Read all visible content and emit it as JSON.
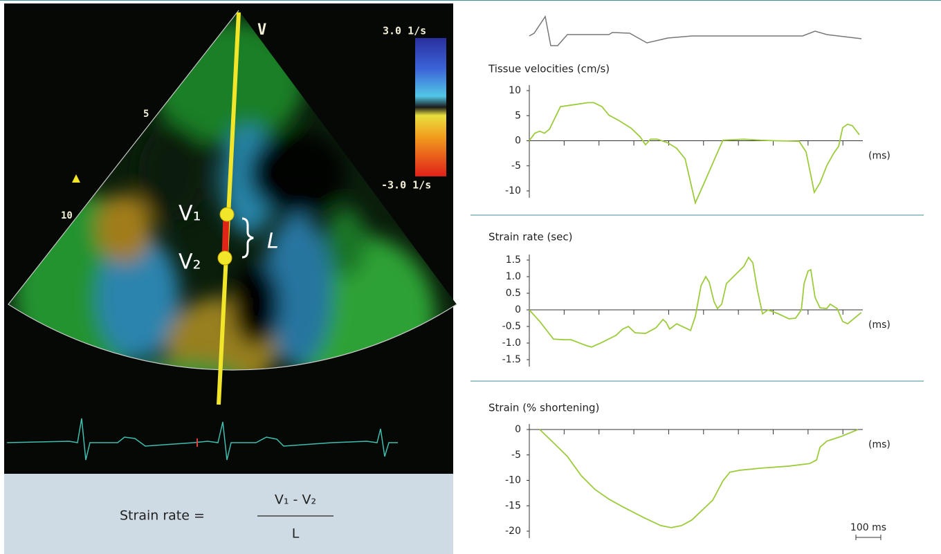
{
  "echo": {
    "scale_top": "3.0 1/s",
    "scale_bottom": "-3.0 1/s",
    "beam": "V",
    "depth_5": "5",
    "depth_10": "10",
    "point_1": "V₁",
    "point_2": "V₂",
    "length": "L"
  },
  "formula": {
    "lhs": "Strain rate =",
    "numerator": "V₁ - V₂",
    "denominator": "L"
  },
  "chart_data": [
    {
      "type": "line",
      "title": "Tissue velocities (cm/s)",
      "xlabel": "(ms)",
      "color": "#9ccb3b",
      "x": [
        0,
        22,
        42,
        61,
        81,
        125,
        181,
        236,
        259,
        292,
        320,
        361,
        409,
        445,
        467,
        487,
        514,
        556,
        592,
        626,
        667,
        709,
        751,
        778,
        862,
        931,
        987,
        1084,
        1112,
        1145,
        1168,
        1195,
        1223,
        1243,
        1259,
        1279,
        1298,
        1326
      ],
      "values": [
        0,
        1.5,
        1.9,
        1.5,
        2.3,
        6.8,
        7.2,
        7.6,
        7.6,
        6.8,
        5.1,
        4,
        2.5,
        0.8,
        -0.8,
        0.3,
        0.3,
        -0.4,
        -1.5,
        -3.6,
        -12.4,
        -7.7,
        -2.9,
        0.1,
        0.3,
        0.1,
        0,
        -0.1,
        -2.2,
        -10.3,
        -8.4,
        -5,
        -2.5,
        -1.1,
        2.6,
        3.3,
        3,
        1.2
      ],
      "xlim": [
        0,
        1340
      ],
      "xticks": [
        140,
        280,
        420,
        560,
        700,
        840,
        980,
        1120,
        1260
      ],
      "ylim": [
        -10,
        10
      ],
      "yticks": [
        10,
        5,
        0,
        -5,
        -10
      ]
    },
    {
      "type": "line",
      "title": "Strain rate (sec)",
      "xlabel": "(ms)",
      "color": "#9ccb3b",
      "x": [
        0,
        42,
        97,
        139,
        167,
        209,
        231,
        250,
        292,
        348,
        375,
        398,
        425,
        467,
        509,
        537,
        550,
        564,
        592,
        626,
        648,
        667,
        690,
        709,
        723,
        742,
        756,
        773,
        792,
        820,
        862,
        881,
        898,
        917,
        937,
        959,
        1001,
        1043,
        1070,
        1093,
        1104,
        1120,
        1131,
        1148,
        1168,
        1195,
        1209,
        1237,
        1259,
        1279,
        1334
      ],
      "values": [
        0,
        -0.35,
        -0.88,
        -0.9,
        -0.9,
        -1.02,
        -1.08,
        -1.12,
        -0.98,
        -0.77,
        -0.58,
        -0.5,
        -0.69,
        -0.71,
        -0.54,
        -0.29,
        -0.38,
        -0.58,
        -0.42,
        -0.54,
        -0.62,
        -0.2,
        0.73,
        1.0,
        0.83,
        0.25,
        0.04,
        0.17,
        0.79,
        1.0,
        1.31,
        1.58,
        1.42,
        0.58,
        -0.12,
        0,
        -0.12,
        -0.27,
        -0.25,
        0,
        0.79,
        1.17,
        1.21,
        0.38,
        0.06,
        0.04,
        0.17,
        0.04,
        -0.35,
        -0.42,
        -0.08
      ],
      "xlim": [
        0,
        1340
      ],
      "xticks": [
        140,
        280,
        420,
        560,
        700,
        840,
        980,
        1120,
        1260
      ],
      "ylim": [
        -1.5,
        1.5
      ],
      "yticks": [
        1.5,
        {
          "value": 1,
          "label": "1.0"
        },
        0.5,
        0,
        -0.5,
        {
          "value": -1,
          "label": "-1.0"
        },
        -1.5
      ]
    },
    {
      "type": "line",
      "title": "Strain (% shortening)",
      "xlabel": "(ms)",
      "color": "#9ccb3b",
      "x": [
        42,
        97,
        153,
        209,
        264,
        320,
        375,
        459,
        528,
        570,
        612,
        653,
        709,
        737,
        778,
        806,
        848,
        931,
        1043,
        1126,
        1154,
        1168,
        1195,
        1251,
        1321
      ],
      "values": [
        0,
        -2.6,
        -5.3,
        -9.1,
        -11.8,
        -13.7,
        -15.2,
        -17.3,
        -18.9,
        -19.3,
        -18.9,
        -17.8,
        -15.2,
        -13.9,
        -10.1,
        -8.4,
        -8,
        -7.6,
        -7.2,
        -6.7,
        -6,
        -3.5,
        -2.3,
        -1.4,
        0
      ],
      "xlim": [
        0,
        1340
      ],
      "xticks": [
        140,
        280,
        420,
        560,
        700,
        840,
        980,
        1120,
        1260
      ],
      "ylim": [
        -20,
        0
      ],
      "yticks": [
        0,
        -5,
        -10,
        -15,
        -20
      ],
      "scale_bar": {
        "value": 100,
        "label": "100 ms"
      }
    }
  ]
}
